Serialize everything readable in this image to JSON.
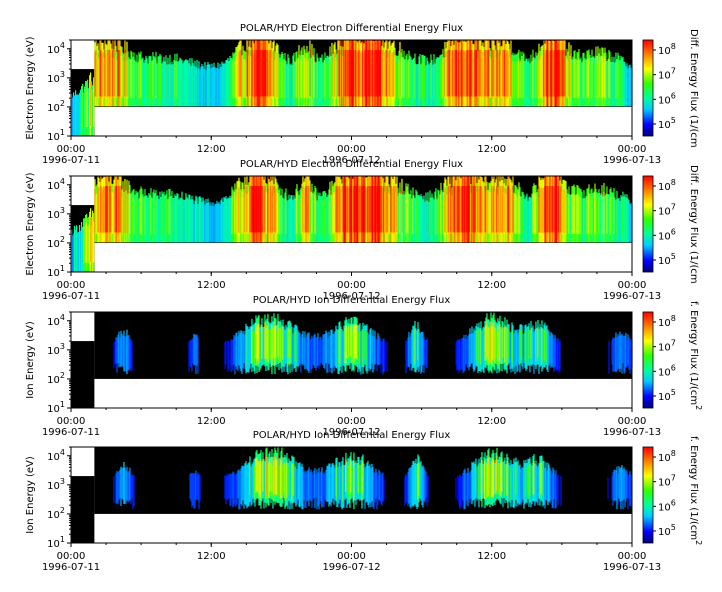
{
  "chart_data": [
    {
      "type": "heatmap",
      "title": "POLAR/HYD  Electron Differential Energy Flux",
      "ylabel": "Electron Energy (eV)",
      "yscale": "log",
      "ylim": [
        10,
        20000
      ],
      "xlim": [
        "1996-07-11 00:00",
        "1996-07-13 00:00"
      ],
      "xticks": [
        {
          "time": "00:00",
          "date": "1996-07-11"
        },
        {
          "time": "12:00",
          "date": ""
        },
        {
          "time": "00:00",
          "date": "1996-07-12"
        },
        {
          "time": "12:00",
          "date": ""
        },
        {
          "time": "00:00",
          "date": "1996-07-13"
        }
      ],
      "yticks": [
        "10^1",
        "10^2",
        "10^3",
        "10^4"
      ],
      "colorbar": {
        "label": "Diff. Energy Flux (1/(cm",
        "scale": "log",
        "ticks": [
          "10^5",
          "10^6",
          "10^7",
          "10^8"
        ]
      },
      "data_band_hours": [
        {
          "start": 0,
          "end": 2,
          "emin": 10,
          "emax": 2000
        },
        {
          "start": 2,
          "end": 48,
          "emin": 100,
          "emax": 20000
        }
      ]
    },
    {
      "type": "heatmap",
      "title": "POLAR/HYD  Electron Differential Energy Flux",
      "ylabel": "Electron Energy (eV)",
      "yscale": "log",
      "ylim": [
        10,
        20000
      ],
      "xlim": [
        "1996-07-11 00:00",
        "1996-07-13 00:00"
      ],
      "xticks": [
        {
          "time": "00:00",
          "date": "1996-07-11"
        },
        {
          "time": "12:00",
          "date": ""
        },
        {
          "time": "00:00",
          "date": "1996-07-12"
        },
        {
          "time": "12:00",
          "date": ""
        },
        {
          "time": "00:00",
          "date": "1996-07-13"
        }
      ],
      "yticks": [
        "10^1",
        "10^2",
        "10^3",
        "10^4"
      ],
      "colorbar": {
        "label": "Diff. Energy Flux (1/(cm",
        "scale": "log",
        "ticks": [
          "10^5",
          "10^6",
          "10^7",
          "10^8"
        ]
      },
      "data_band_hours": [
        {
          "start": 0,
          "end": 2,
          "emin": 10,
          "emax": 2000
        },
        {
          "start": 2,
          "end": 48,
          "emin": 100,
          "emax": 20000
        }
      ]
    },
    {
      "type": "heatmap",
      "title": "POLAR/HYD  Ion Differential Energy Flux",
      "ylabel": "Ion Energy (eV)",
      "yscale": "log",
      "ylim": [
        10,
        20000
      ],
      "xlim": [
        "1996-07-11 00:00",
        "1996-07-13 00:00"
      ],
      "xticks": [
        {
          "time": "00:00",
          "date": "1996-07-11"
        },
        {
          "time": "12:00",
          "date": ""
        },
        {
          "time": "00:00",
          "date": "1996-07-12"
        },
        {
          "time": "12:00",
          "date": ""
        },
        {
          "time": "00:00",
          "date": "1996-07-13"
        }
      ],
      "yticks": [
        "10^1",
        "10^2",
        "10^3",
        "10^4"
      ],
      "colorbar": {
        "label": "f. Energy Flux (1/(cm^2",
        "scale": "log",
        "ticks": [
          "10^5",
          "10^6",
          "10^7",
          "10^8"
        ]
      },
      "data_band_hours": [
        {
          "start": 0,
          "end": 2,
          "emin": 10,
          "emax": 2000
        },
        {
          "start": 2,
          "end": 48,
          "emin": 100,
          "emax": 20000
        }
      ]
    },
    {
      "type": "heatmap",
      "title": "POLAR/HYD  Ion Differential Energy Flux",
      "ylabel": "Ion Energy (eV)",
      "yscale": "log",
      "ylim": [
        10,
        20000
      ],
      "xlim": [
        "1996-07-11 00:00",
        "1996-07-13 00:00"
      ],
      "xticks": [
        {
          "time": "00:00",
          "date": "1996-07-11"
        },
        {
          "time": "12:00",
          "date": ""
        },
        {
          "time": "00:00",
          "date": "1996-07-12"
        },
        {
          "time": "12:00",
          "date": ""
        },
        {
          "time": "00:00",
          "date": "1996-07-13"
        }
      ],
      "yticks": [
        "10^1",
        "10^2",
        "10^3",
        "10^4"
      ],
      "colorbar": {
        "label": "f. Energy Flux (1/(cm^2",
        "scale": "log",
        "ticks": [
          "10^5",
          "10^6",
          "10^7",
          "10^8"
        ]
      },
      "data_band_hours": [
        {
          "start": 0,
          "end": 2,
          "emin": 10,
          "emax": 2000
        },
        {
          "start": 2,
          "end": 48,
          "emin": 100,
          "emax": 20000
        }
      ]
    }
  ],
  "colors": {
    "background": "#000000",
    "low": "#0000ff",
    "mid": "#00ff80",
    "high": "#ff0000",
    "nodata": "#ffffff"
  }
}
